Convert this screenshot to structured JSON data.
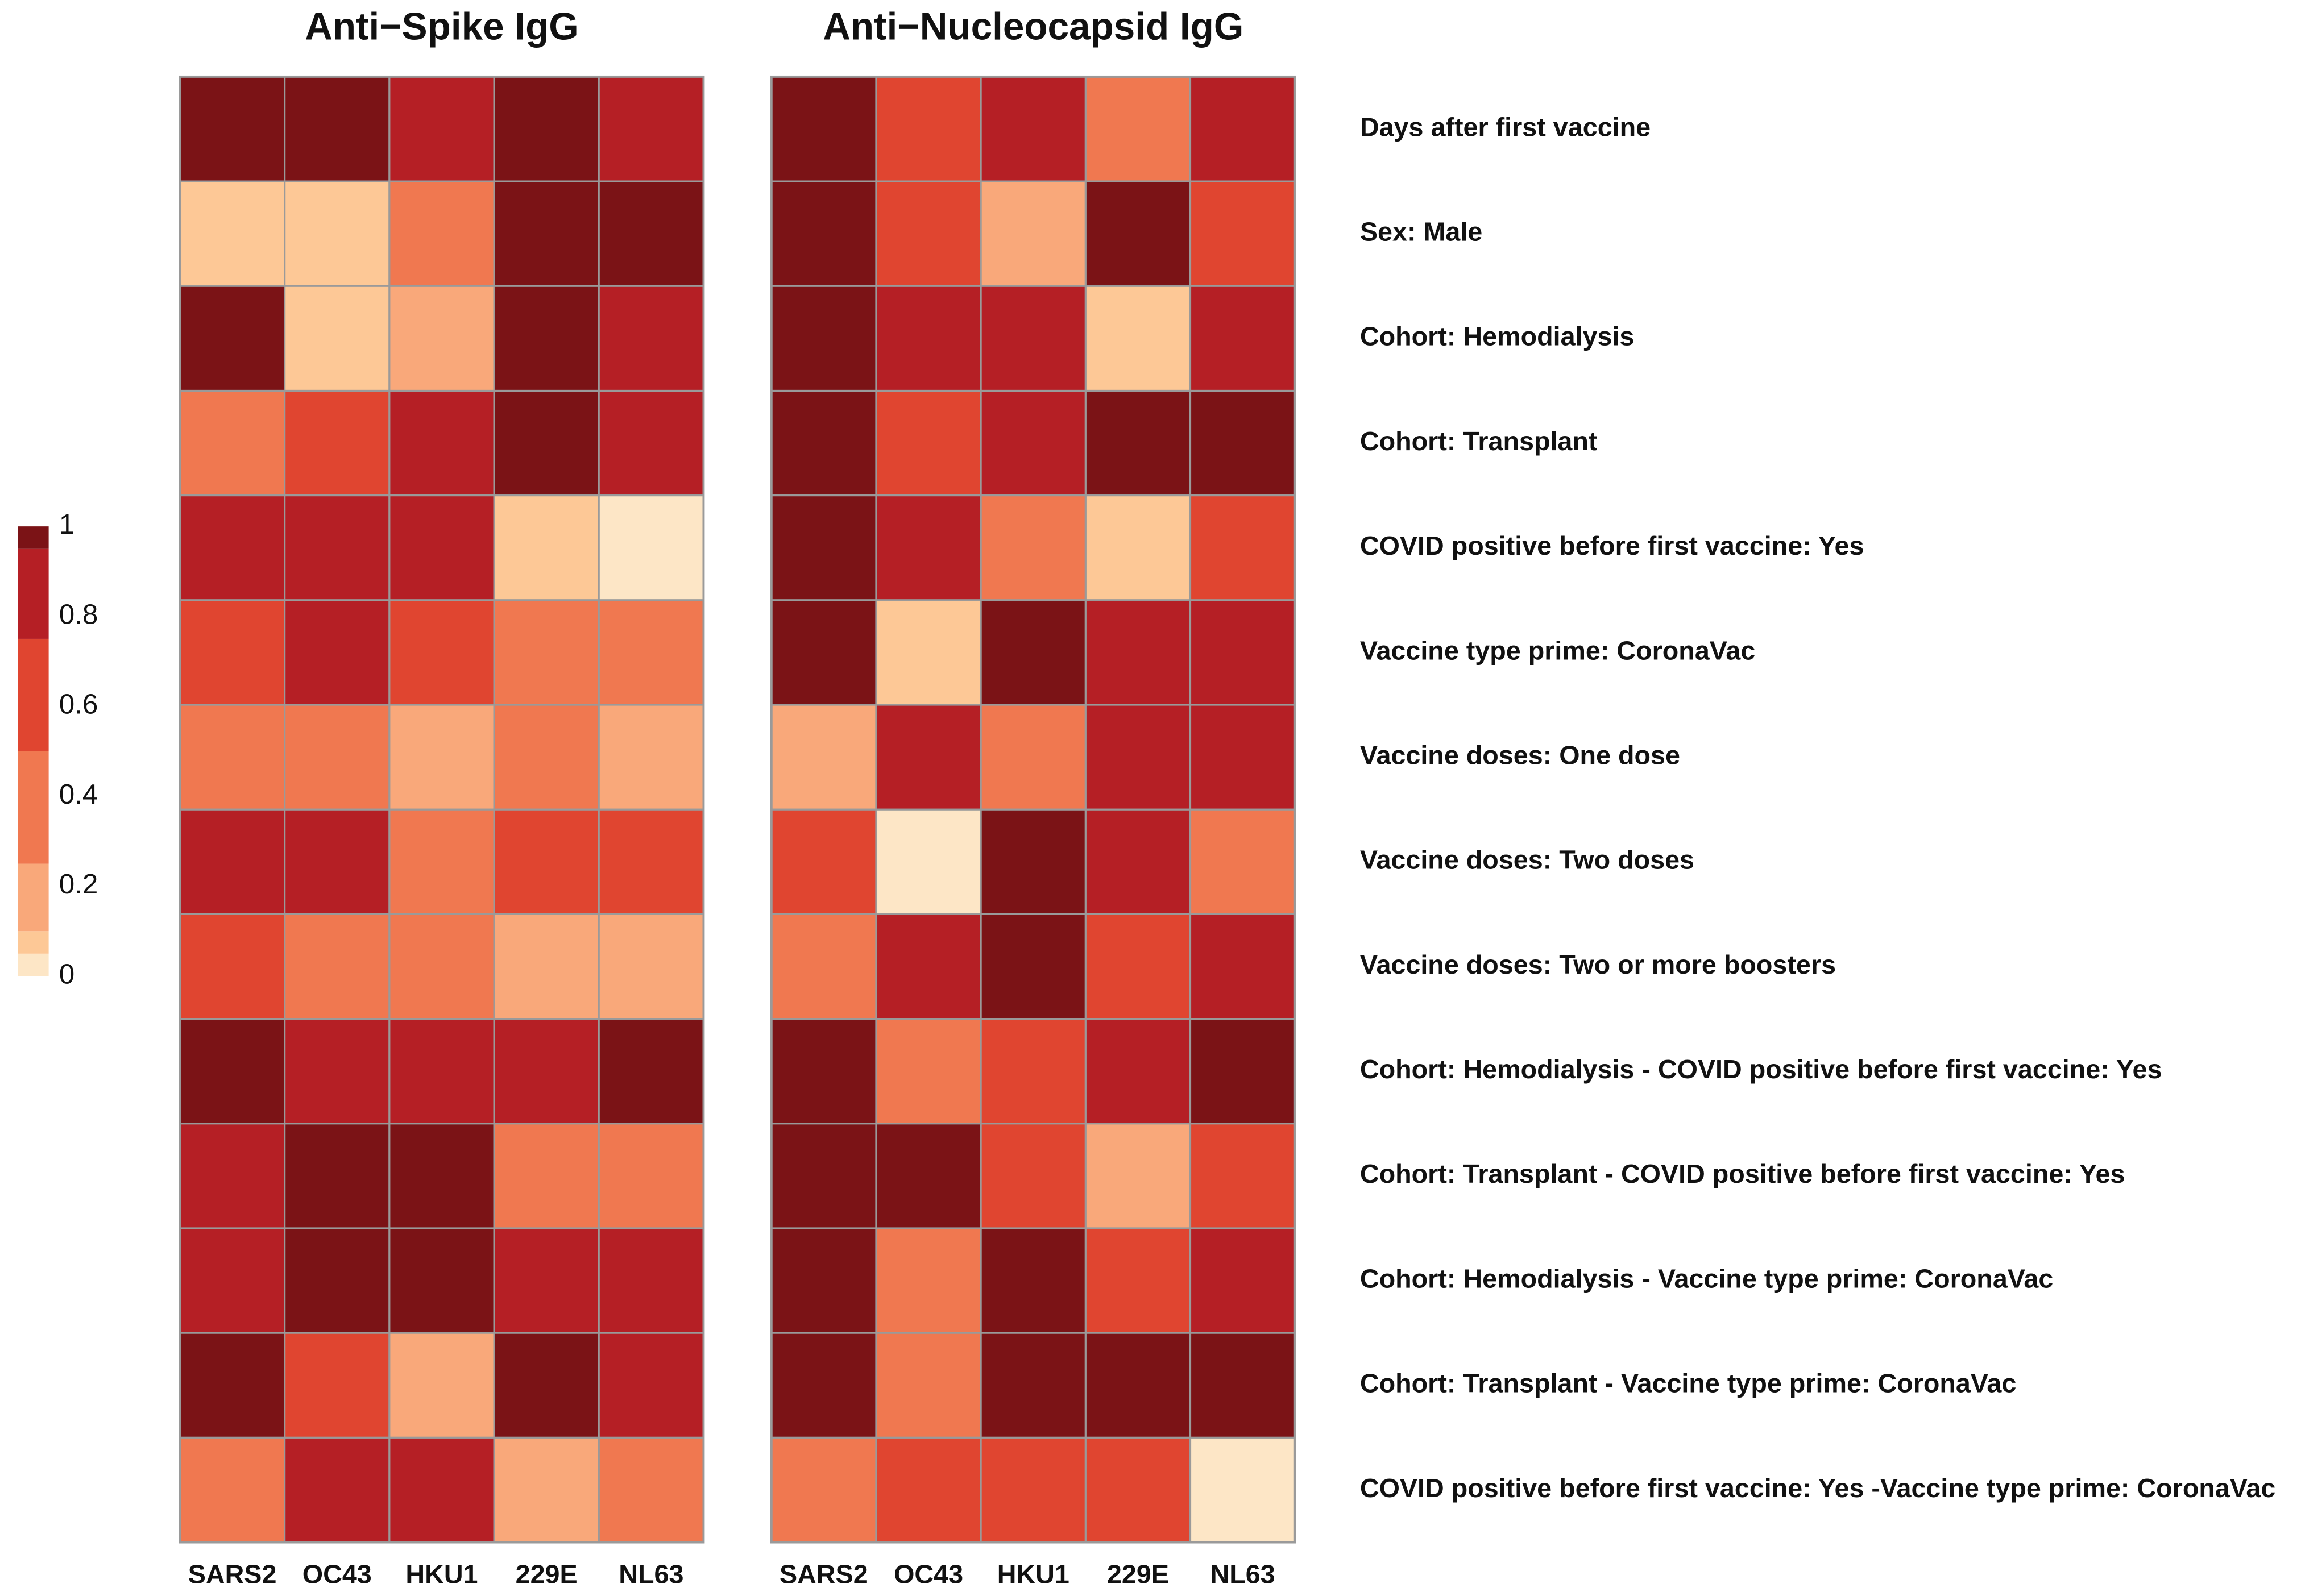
{
  "chart_data": {
    "type": "heatmap",
    "categories": [
      "SARS2",
      "OC43",
      "HKU1",
      "229E",
      "NL63"
    ],
    "rows": [
      "Days after first vaccine",
      "Sex: Male",
      "Cohort: Hemodialysis",
      "Cohort: Transplant",
      "COVID positive before first vaccine: Yes",
      "Vaccine type prime: CoronaVac",
      "Vaccine doses: One dose",
      "Vaccine doses: Two doses",
      "Vaccine doses: Two or more boosters",
      "Cohort: Hemodialysis - COVID positive before first vaccine: Yes",
      "Cohort: Transplant - COVID positive before first vaccine: Yes",
      "Cohort: Hemodialysis - Vaccine type prime: CoronaVac",
      "Cohort: Transplant - Vaccine type prime: CoronaVac",
      "COVID positive before first vaccine: Yes -Vaccine type prime: CoronaVac"
    ],
    "panels": [
      {
        "title": "Anti−Spike IgG",
        "values": [
          [
            0.98,
            0.98,
            0.85,
            0.98,
            0.85
          ],
          [
            0.08,
            0.08,
            0.4,
            0.98,
            0.98
          ],
          [
            0.98,
            0.08,
            0.2,
            0.98,
            0.85
          ],
          [
            0.4,
            0.65,
            0.85,
            0.98,
            0.85
          ],
          [
            0.85,
            0.85,
            0.85,
            0.08,
            0.03
          ],
          [
            0.65,
            0.85,
            0.65,
            0.4,
            0.4
          ],
          [
            0.4,
            0.4,
            0.2,
            0.4,
            0.2
          ],
          [
            0.85,
            0.85,
            0.4,
            0.65,
            0.65
          ],
          [
            0.65,
            0.4,
            0.4,
            0.2,
            0.2
          ],
          [
            0.98,
            0.85,
            0.85,
            0.85,
            0.98
          ],
          [
            0.85,
            0.98,
            0.98,
            0.4,
            0.4
          ],
          [
            0.85,
            0.98,
            0.98,
            0.85,
            0.85
          ],
          [
            0.98,
            0.65,
            0.2,
            0.98,
            0.85
          ],
          [
            0.4,
            0.85,
            0.85,
            0.2,
            0.4
          ]
        ]
      },
      {
        "title": "Anti−Nucleocapsid IgG",
        "values": [
          [
            0.98,
            0.65,
            0.85,
            0.4,
            0.85
          ],
          [
            0.98,
            0.65,
            0.2,
            0.98,
            0.65
          ],
          [
            0.98,
            0.85,
            0.85,
            0.08,
            0.85
          ],
          [
            0.98,
            0.65,
            0.85,
            0.98,
            0.98
          ],
          [
            0.98,
            0.85,
            0.4,
            0.08,
            0.65
          ],
          [
            0.98,
            0.08,
            0.98,
            0.85,
            0.85
          ],
          [
            0.2,
            0.85,
            0.4,
            0.85,
            0.85
          ],
          [
            0.65,
            0,
            0.98,
            0.85,
            0.4
          ],
          [
            0.4,
            0.85,
            0.98,
            0.65,
            0.85
          ],
          [
            0.98,
            0.4,
            0.65,
            0.85,
            0.98
          ],
          [
            0.98,
            0.98,
            0.65,
            0.2,
            0.65
          ],
          [
            0.98,
            0.4,
            0.98,
            0.65,
            0.85
          ],
          [
            0.98,
            0.4,
            0.98,
            0.98,
            0.98
          ],
          [
            0.4,
            0.65,
            0.65,
            0.65,
            0.03
          ]
        ]
      }
    ],
    "colorbar": {
      "breaks": [
        0,
        0.05,
        0.1,
        0.25,
        0.5,
        0.75,
        0.95,
        1
      ],
      "colors": [
        "#fde6c6",
        "#fdc896",
        "#f9a87a",
        "#f07850",
        "#e04530",
        "#b51f25",
        "#7b1316"
      ],
      "ticks": [
        0,
        0.2,
        0.4,
        0.6,
        0.8,
        1
      ]
    }
  }
}
